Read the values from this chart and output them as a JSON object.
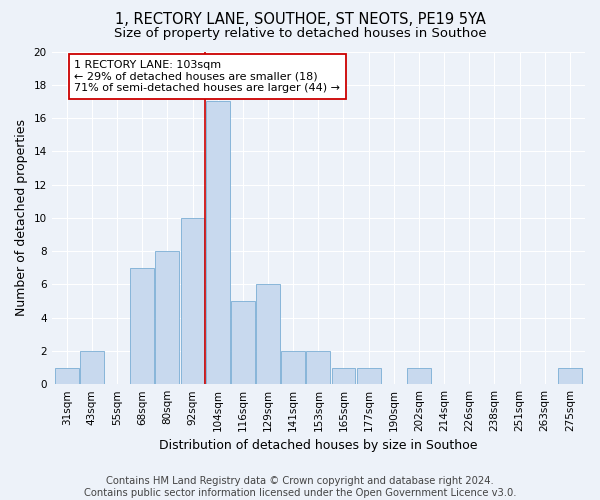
{
  "title_line1": "1, RECTORY LANE, SOUTHOE, ST NEOTS, PE19 5YA",
  "title_line2": "Size of property relative to detached houses in Southoe",
  "xlabel": "Distribution of detached houses by size in Southoe",
  "ylabel": "Number of detached properties",
  "footer_line1": "Contains HM Land Registry data © Crown copyright and database right 2024.",
  "footer_line2": "Contains public sector information licensed under the Open Government Licence v3.0.",
  "categories": [
    "31sqm",
    "43sqm",
    "55sqm",
    "68sqm",
    "80sqm",
    "92sqm",
    "104sqm",
    "116sqm",
    "129sqm",
    "141sqm",
    "153sqm",
    "165sqm",
    "177sqm",
    "190sqm",
    "202sqm",
    "214sqm",
    "226sqm",
    "238sqm",
    "251sqm",
    "263sqm",
    "275sqm"
  ],
  "values": [
    1,
    2,
    0,
    7,
    8,
    10,
    17,
    5,
    6,
    2,
    2,
    1,
    1,
    0,
    1,
    0,
    0,
    0,
    0,
    0,
    1
  ],
  "bar_color": "#c8d9ee",
  "bar_edge_color": "#7aadd4",
  "vline_color": "#cc0000",
  "annotation_text": "1 RECTORY LANE: 103sqm\n← 29% of detached houses are smaller (18)\n71% of semi-detached houses are larger (44) →",
  "annotation_box_color": "#ffffff",
  "annotation_box_edge_color": "#cc0000",
  "ylim": [
    0,
    20
  ],
  "yticks": [
    0,
    2,
    4,
    6,
    8,
    10,
    12,
    14,
    16,
    18,
    20
  ],
  "background_color": "#edf2f9",
  "plot_bg_color": "#edf2f9",
  "grid_color": "#ffffff",
  "title_fontsize": 10.5,
  "subtitle_fontsize": 9.5,
  "axis_label_fontsize": 9,
  "tick_fontsize": 7.5,
  "annotation_fontsize": 8,
  "footer_fontsize": 7.2
}
